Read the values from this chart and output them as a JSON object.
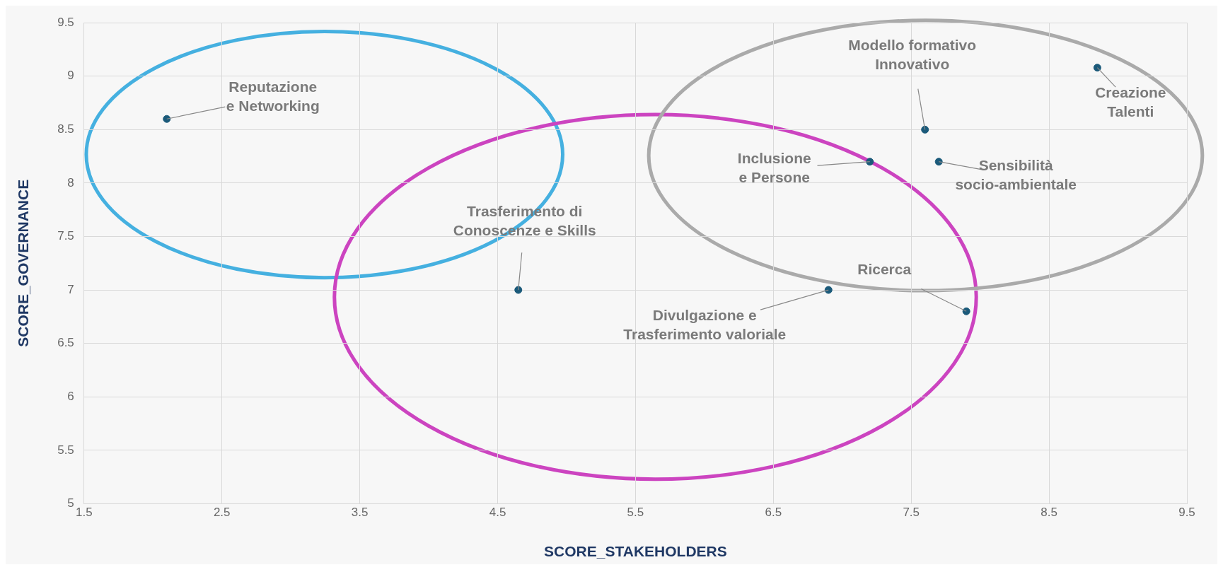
{
  "chart_data": {
    "type": "scatter",
    "xlabel": "SCORE_STAKEHOLDERS",
    "ylabel": "SCORE_GOVERNANCE",
    "xlim": [
      1.5,
      9.5
    ],
    "xticks": [
      1.5,
      2.5,
      3.5,
      4.5,
      5.5,
      6.5,
      7.5,
      8.5,
      9.5
    ],
    "ylim": [
      5,
      9.5
    ],
    "yticks": [
      5,
      5.5,
      6,
      6.5,
      7,
      7.5,
      8,
      8.5,
      9,
      9.5
    ],
    "grid": true,
    "marker": "circle",
    "series": [
      {
        "color": "#1b5a7a",
        "x": [
          2.1,
          4.65,
          6.9,
          7.2,
          7.6,
          7.7,
          7.9,
          8.85
        ],
        "values": [
          8.6,
          7.0,
          7.0,
          8.2,
          8.5,
          8.2,
          6.8,
          9.08
        ]
      }
    ],
    "annotations": [
      {
        "text": "Reputazione\ne Networking",
        "x": 2.1,
        "y": 8.6
      },
      {
        "text": "Trasferimento di\nConoscenze e Skills",
        "x": 4.65,
        "y": 7.0
      },
      {
        "text": "Divulgazione e\nTrasferimento valoriale",
        "x": 6.9,
        "y": 7.0
      },
      {
        "text": "Inclusione\ne Persone",
        "x": 7.2,
        "y": 8.2
      },
      {
        "text": "Modello formativo\nInnovativo",
        "x": 7.6,
        "y": 8.5
      },
      {
        "text": "Sensibilità\nsocio-ambientale",
        "x": 7.7,
        "y": 8.2
      },
      {
        "text": "Ricerca",
        "x": 7.9,
        "y": 6.8
      },
      {
        "text": "Creazione\nTalenti",
        "x": 8.85,
        "y": 9.08
      }
    ]
  }
}
